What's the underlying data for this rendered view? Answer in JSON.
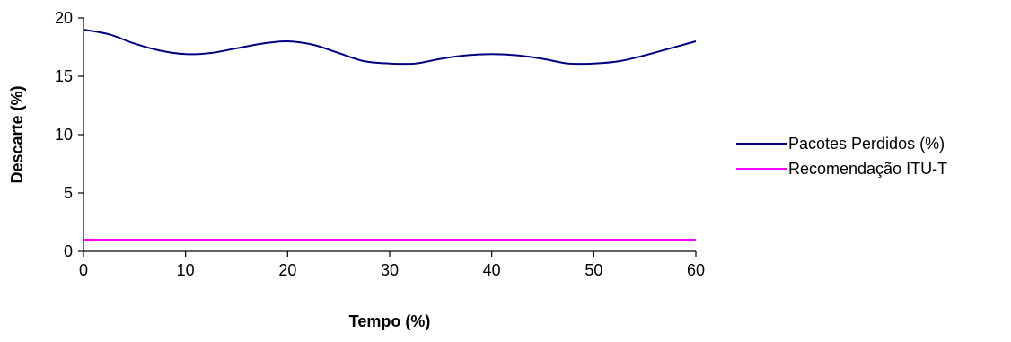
{
  "chart_data": {
    "type": "line",
    "xlabel": "Tempo (%)",
    "ylabel": "Descarte (%)",
    "xlim": [
      0,
      60
    ],
    "ylim": [
      0,
      20
    ],
    "x_ticks": [
      0,
      10,
      20,
      30,
      40,
      50,
      60
    ],
    "y_ticks": [
      0,
      5,
      10,
      15,
      20
    ],
    "grid": false,
    "legend_position": "right",
    "series": [
      {
        "name": "Pacotes Perdidos (%)",
        "color": "#000080",
        "x": [
          0,
          2.5,
          5,
          7.5,
          10,
          12.5,
          15,
          17.5,
          20,
          22.5,
          25,
          27.5,
          30,
          32.5,
          35,
          37.5,
          40,
          42.5,
          45,
          47.5,
          50,
          52.5,
          55,
          57.5,
          60
        ],
        "y": [
          19,
          18.6,
          17.8,
          17.2,
          16.9,
          17.0,
          17.4,
          17.8,
          18.0,
          17.7,
          17.0,
          16.3,
          16.1,
          16.1,
          16.5,
          16.8,
          16.9,
          16.8,
          16.5,
          16.1,
          16.1,
          16.3,
          16.8,
          17.4,
          18.0
        ]
      },
      {
        "name": "Recomendação ITU-T",
        "color": "#ff00ff",
        "x": [
          0,
          60
        ],
        "y": [
          1,
          1
        ]
      }
    ]
  }
}
